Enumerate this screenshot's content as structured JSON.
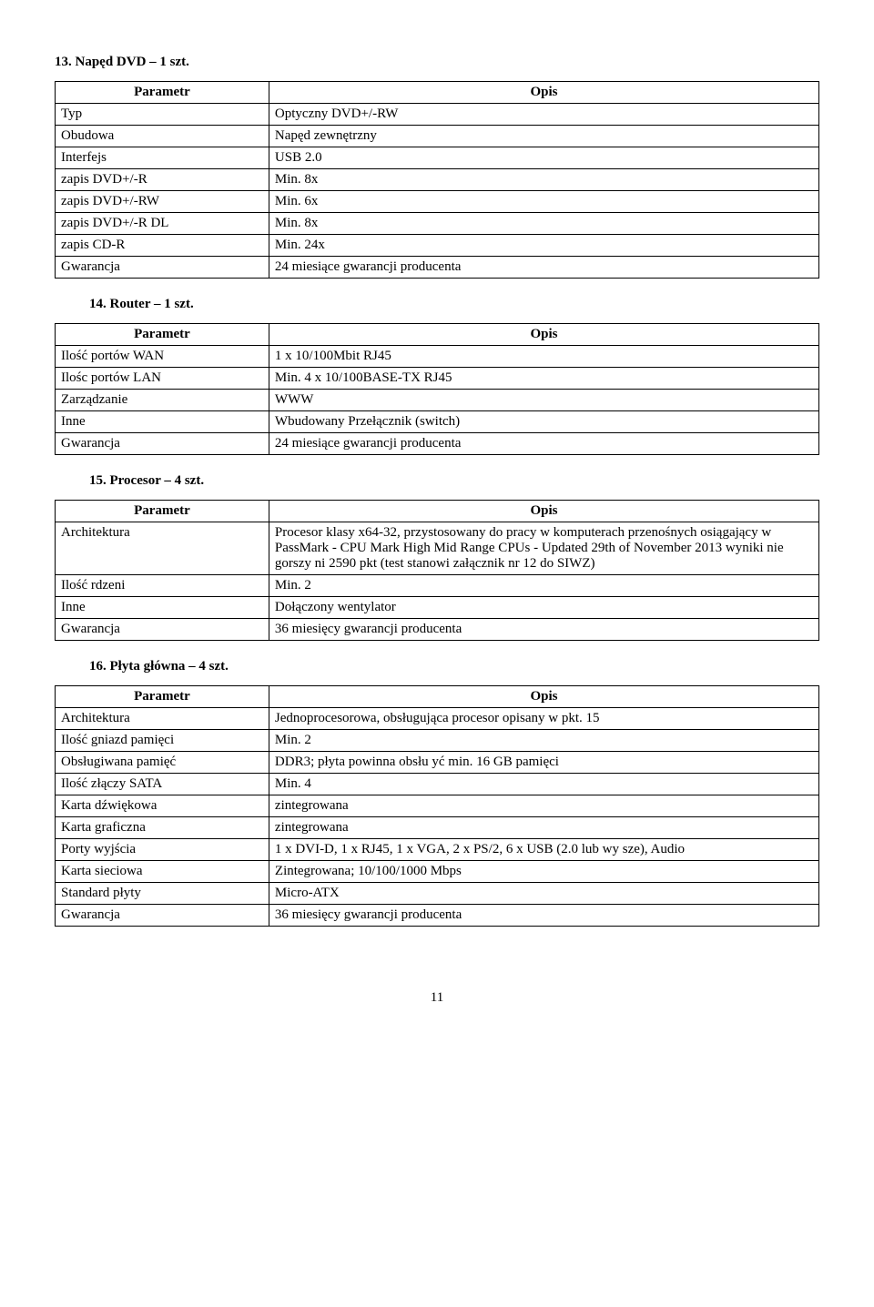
{
  "sections": {
    "s13": {
      "heading": "13. Napęd DVD – 1 szt."
    },
    "s14": {
      "heading": "14. Router – 1 szt."
    },
    "s15": {
      "heading": "15. Procesor – 4 szt."
    },
    "s16": {
      "heading": "16. Płyta główna – 4 szt."
    }
  },
  "headers": {
    "param": "Parametr",
    "opis": "Opis"
  },
  "t13": {
    "r0": {
      "p": "Typ",
      "o": "Optyczny DVD+/-RW"
    },
    "r1": {
      "p": "Obudowa",
      "o": "Napęd zewnętrzny"
    },
    "r2": {
      "p": "Interfejs",
      "o": "USB 2.0"
    },
    "r3": {
      "p": "zapis DVD+/-R",
      "o": "Min. 8x"
    },
    "r4": {
      "p": "zapis DVD+/-RW",
      "o": "Min. 6x"
    },
    "r5": {
      "p": "zapis DVD+/-R DL",
      "o": "Min. 8x"
    },
    "r6": {
      "p": "zapis CD-R",
      "o": "Min. 24x"
    },
    "r7": {
      "p": "Gwarancja",
      "o": "24 miesiące gwarancji producenta"
    }
  },
  "t14": {
    "r0": {
      "p": "Ilość portów WAN",
      "o": "1 x 10/100Mbit RJ45"
    },
    "r1": {
      "p": "Ilośc portów LAN",
      "o": "Min. 4 x 10/100BASE-TX RJ45"
    },
    "r2": {
      "p": "Zarządzanie",
      "o": "WWW"
    },
    "r3": {
      "p": "Inne",
      "o": "Wbudowany Przełącznik (switch)"
    },
    "r4": {
      "p": "Gwarancja",
      "o": "24 miesiące gwarancji producenta"
    }
  },
  "t15": {
    "r0": {
      "p": "Architektura",
      "o": "Procesor klasy x64-32, przystosowany do pracy w komputerach przenośnych osiągający w PassMark - CPU Mark High Mid Range CPUs - Updated 29th of November 2013 wyniki nie gorszy ni  2590 pkt (test stanowi załącznik nr 12 do SIWZ)"
    },
    "r1": {
      "p": "Ilość rdzeni",
      "o": "Min. 2"
    },
    "r2": {
      "p": "Inne",
      "o": "Dołączony wentylator"
    },
    "r3": {
      "p": "Gwarancja",
      "o": "36 miesięcy gwarancji producenta"
    }
  },
  "t16": {
    "r0": {
      "p": "Architektura",
      "o": "Jednoprocesorowa, obsługująca procesor opisany w pkt. 15"
    },
    "r1": {
      "p": "Ilość gniazd pamięci",
      "o": "Min. 2"
    },
    "r2": {
      "p": "Obsługiwana pamięć",
      "o": "DDR3; płyta powinna obsłu  yć min. 16 GB pamięci"
    },
    "r3": {
      "p": "Ilość złączy SATA",
      "o": "Min. 4"
    },
    "r4": {
      "p": "Karta dźwiękowa",
      "o": "zintegrowana"
    },
    "r5": {
      "p": "Karta graficzna",
      "o": "zintegrowana"
    },
    "r6": {
      "p": "Porty wyjścia",
      "o": "1 x DVI-D, 1 x RJ45, 1 x VGA, 2 x PS/2,  6 x USB (2.0 lub wy  sze),  Audio"
    },
    "r7": {
      "p": "Karta sieciowa",
      "o": "Zintegrowana; 10/100/1000 Mbps"
    },
    "r8": {
      "p": "Standard płyty",
      "o": "Micro-ATX"
    },
    "r9": {
      "p": "Gwarancja",
      "o": "36 miesięcy gwarancji producenta"
    }
  },
  "pagenum": "11"
}
